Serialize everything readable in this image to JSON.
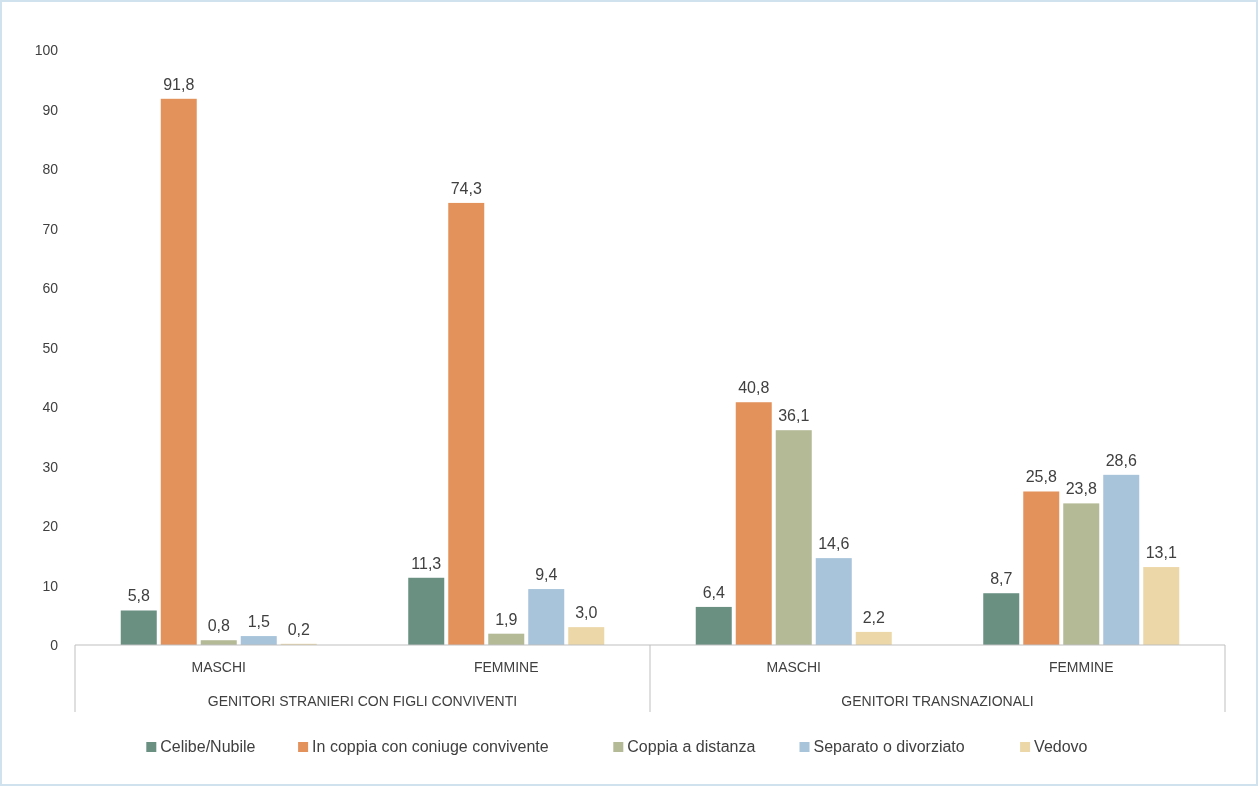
{
  "chart_data": {
    "type": "bar",
    "categories": [
      "MASCHI",
      "FEMMINE",
      "MASCHI",
      "FEMMINE"
    ],
    "annotations": [
      "GENITORI STRANIERI CON FIGLI CONVIVENTI",
      "GENITORI TRANSNAZIONALI"
    ],
    "series": [
      {
        "name": "Celibe/Nubile",
        "color": "#6a9082",
        "values": [
          5.8,
          11.3,
          6.4,
          8.7
        ],
        "value_labels": [
          "5,8",
          "11,3",
          "6,4",
          "8,7"
        ]
      },
      {
        "name": "In coppia con coniuge convivente",
        "color": "#e3925c",
        "values": [
          91.8,
          74.3,
          40.8,
          25.8
        ],
        "value_labels": [
          "91,8",
          "74,3",
          "40,8",
          "25,8"
        ]
      },
      {
        "name": "Coppia a distanza",
        "color": "#b4ba96",
        "values": [
          0.8,
          1.9,
          36.1,
          23.8
        ],
        "value_labels": [
          "0,8",
          "1,9",
          "36,1",
          "23,8"
        ]
      },
      {
        "name": "Separato o divorziato",
        "color": "#a7c4da",
        "values": [
          1.5,
          9.4,
          14.6,
          28.6
        ],
        "value_labels": [
          "1,5",
          "9,4",
          "14,6",
          "28,6"
        ]
      },
      {
        "name": "Vedovo",
        "color": "#ecd7a8",
        "values": [
          0.2,
          3.0,
          2.2,
          13.1
        ],
        "value_labels": [
          "0,2",
          "3,0",
          "2,2",
          "13,1"
        ]
      }
    ],
    "ylim": [
      0,
      100
    ],
    "yticks": [
      0,
      10,
      20,
      30,
      40,
      50,
      60,
      70,
      80,
      90,
      100
    ],
    "legend": "bottom"
  }
}
